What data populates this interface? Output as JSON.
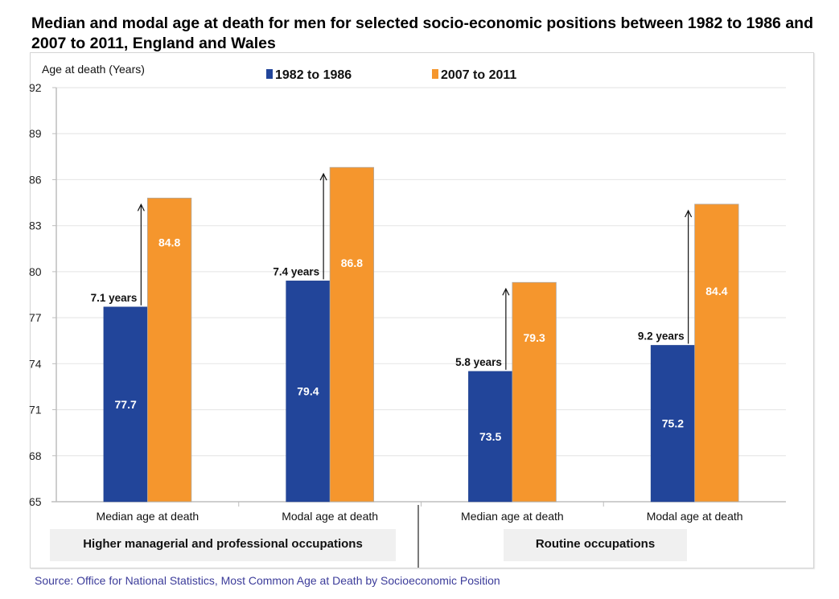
{
  "title": "Median and modal age at death for men for selected socio-economic positions between 1982 to 1986 and 2007 to 2011, England and Wales",
  "source": "Source: Office for National Statistics, Most Common Age at Death by Socioeconomic Position",
  "chart_data": {
    "type": "bar",
    "title": "Median and modal age at death for men for selected socio-economic positions between 1982 to 1986 and 2007 to 2011, England and Wales",
    "ylabel": "Age at death (Years)",
    "xlabel": "",
    "ylim": [
      65,
      92
    ],
    "yticks": [
      65,
      68,
      71,
      74,
      77,
      80,
      83,
      86,
      89,
      92
    ],
    "grid": true,
    "legend_position": "top",
    "categories": [
      "Median age at death",
      "Modal age at death",
      "Median age at death",
      "Modal age at death"
    ],
    "groups": [
      {
        "label": "Higher managerial and professional occupations",
        "categories": [
          0,
          1
        ]
      },
      {
        "label": "Routine occupations",
        "categories": [
          2,
          3
        ]
      }
    ],
    "series": [
      {
        "name": "1982 to 1986",
        "color": "#22459a",
        "values": [
          77.7,
          79.4,
          73.5,
          75.2
        ]
      },
      {
        "name": "2007 to 2011",
        "color": "#f5962d",
        "values": [
          84.8,
          86.8,
          79.3,
          84.4
        ]
      }
    ],
    "annotations": [
      "7.1 years",
      "7.4 years",
      "5.8 years",
      "9.2 years"
    ]
  }
}
